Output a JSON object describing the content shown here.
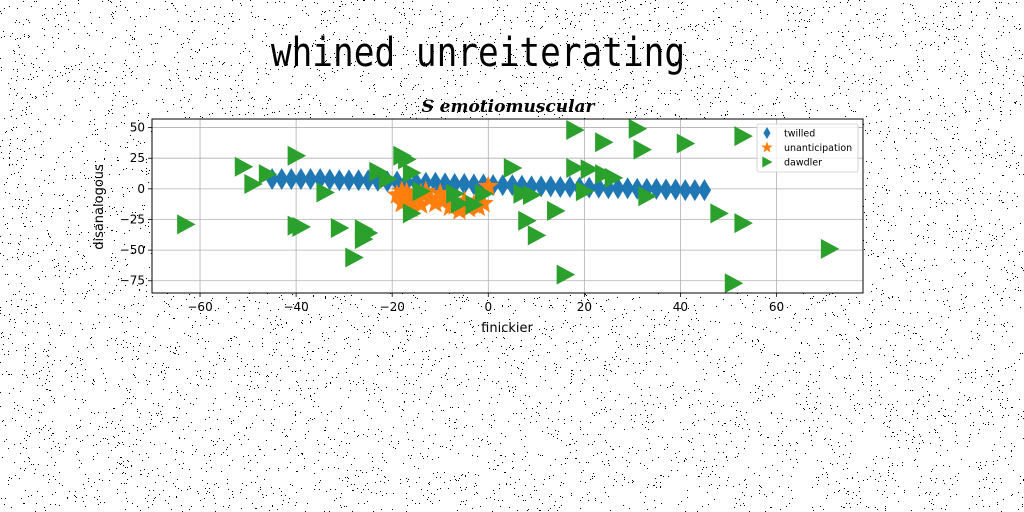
{
  "suptitle": "whined unreiterating",
  "chart_data": {
    "type": "scatter",
    "title": "S emotiomuscular",
    "xlabel": "finickier",
    "ylabel": "disanalogous",
    "xlim": [
      -70,
      78
    ],
    "ylim": [
      -85,
      57
    ],
    "xticks": [
      -60,
      -40,
      -20,
      0,
      20,
      40,
      60
    ],
    "yticks": [
      -75,
      -50,
      -25,
      0,
      25,
      50
    ],
    "xtick_labels": [
      "−60",
      "−40",
      "−20",
      "0",
      "20",
      "40",
      "60"
    ],
    "ytick_labels": [
      "−75",
      "−50",
      "−25",
      "0",
      "25",
      "50"
    ],
    "grid": true,
    "legend_position": "top-right",
    "series": [
      {
        "name": "twilled",
        "marker": "thin_diamond",
        "color": "#1f77b4",
        "points": [
          [
            -45,
            8
          ],
          [
            -43,
            8
          ],
          [
            -41,
            8
          ],
          [
            -39,
            8
          ],
          [
            -37,
            8
          ],
          [
            -35,
            8
          ],
          [
            -33,
            7.5
          ],
          [
            -31,
            7
          ],
          [
            -29,
            7
          ],
          [
            -27,
            7
          ],
          [
            -25,
            7
          ],
          [
            -23,
            6.5
          ],
          [
            -21,
            6
          ],
          [
            -19,
            6
          ],
          [
            -17,
            5.5
          ],
          [
            -15,
            5
          ],
          [
            -13,
            5
          ],
          [
            -11,
            5
          ],
          [
            -9,
            4.5
          ],
          [
            -7,
            4
          ],
          [
            -5,
            4
          ],
          [
            -3,
            3.5
          ],
          [
            -1,
            3.5
          ],
          [
            1,
            3
          ],
          [
            3,
            3
          ],
          [
            5,
            3
          ],
          [
            7,
            2.5
          ],
          [
            9,
            2
          ],
          [
            11,
            2
          ],
          [
            13,
            2
          ],
          [
            15,
            1.5
          ],
          [
            17,
            1.5
          ],
          [
            19,
            1
          ],
          [
            21,
            1
          ],
          [
            23,
            1
          ],
          [
            25,
            0.5
          ],
          [
            27,
            0.5
          ],
          [
            29,
            0.5
          ],
          [
            31,
            0
          ],
          [
            33,
            0
          ],
          [
            35,
            0
          ],
          [
            37,
            -0.5
          ],
          [
            39,
            -0.5
          ],
          [
            41,
            -1
          ],
          [
            43,
            -1
          ],
          [
            45,
            -1
          ]
        ]
      },
      {
        "name": "unanticipation",
        "marker": "star",
        "color": "#ff7f0e",
        "points": [
          [
            -19,
            -5
          ],
          [
            -18,
            -12
          ],
          [
            -17,
            -3
          ],
          [
            -16,
            -10
          ],
          [
            -15,
            -7
          ],
          [
            -14,
            -13
          ],
          [
            -13,
            -2
          ],
          [
            -12,
            -8
          ],
          [
            -11,
            -12
          ],
          [
            -10,
            -4
          ],
          [
            -9,
            -9
          ],
          [
            -8,
            -15
          ],
          [
            -7,
            -14
          ],
          [
            -6,
            -18
          ],
          [
            -5,
            -10
          ],
          [
            -4,
            -16
          ],
          [
            -3,
            -13
          ],
          [
            -2,
            -15
          ],
          [
            -1,
            -12
          ],
          [
            0,
            2
          ],
          [
            -18,
            -2
          ],
          [
            -16,
            -16
          ],
          [
            -14,
            -4
          ]
        ]
      },
      {
        "name": "dawdler",
        "marker": "triangle_right",
        "color": "#2ca02c",
        "points": [
          [
            -63,
            -29
          ],
          [
            -51,
            18
          ],
          [
            -49,
            4
          ],
          [
            -46,
            12
          ],
          [
            -40,
            27
          ],
          [
            -40,
            -30
          ],
          [
            -39,
            -31
          ],
          [
            -34,
            -3
          ],
          [
            -31,
            -32
          ],
          [
            -28,
            -56
          ],
          [
            -26,
            -33
          ],
          [
            -26,
            -41
          ],
          [
            -25,
            -36
          ],
          [
            -23,
            14
          ],
          [
            -21,
            8
          ],
          [
            -18,
            27
          ],
          [
            -17,
            24
          ],
          [
            -16,
            -20
          ],
          [
            -16,
            13
          ],
          [
            -14,
            -2
          ],
          [
            -7,
            -4
          ],
          [
            -6,
            -12
          ],
          [
            -3,
            -13
          ],
          [
            -1,
            -4
          ],
          [
            5,
            17
          ],
          [
            7,
            -4
          ],
          [
            8,
            -26
          ],
          [
            9,
            -5
          ],
          [
            10,
            -38
          ],
          [
            14,
            -18
          ],
          [
            16,
            -70
          ],
          [
            18,
            48
          ],
          [
            18,
            17
          ],
          [
            20,
            -2
          ],
          [
            21,
            16
          ],
          [
            24,
            38
          ],
          [
            24,
            12
          ],
          [
            26,
            9
          ],
          [
            31,
            49
          ],
          [
            32,
            32
          ],
          [
            33,
            -6
          ],
          [
            41,
            37
          ],
          [
            48,
            -20
          ],
          [
            51,
            -77
          ],
          [
            53,
            43
          ],
          [
            53,
            -28
          ],
          [
            71,
            -49
          ]
        ]
      }
    ]
  }
}
